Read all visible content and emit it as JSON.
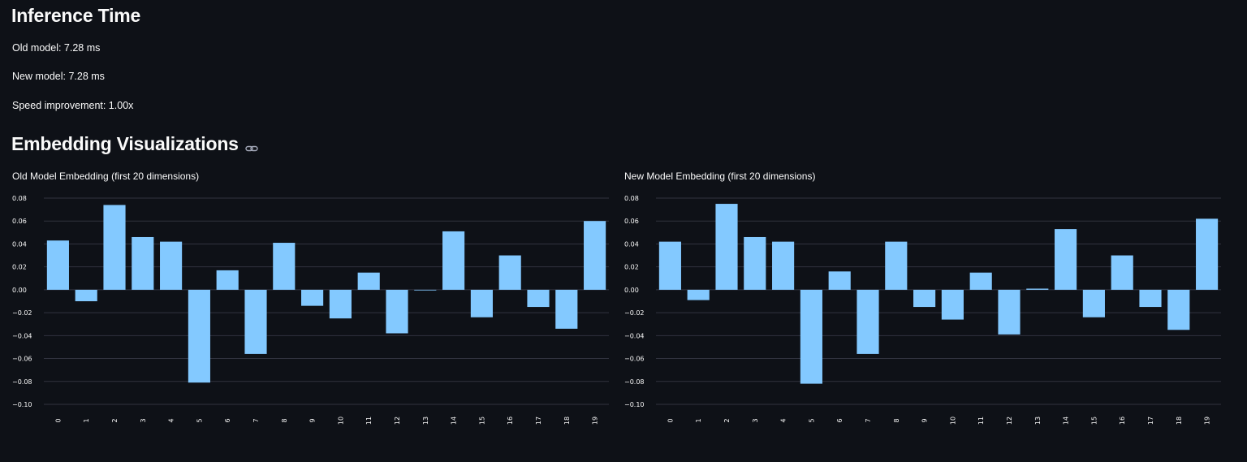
{
  "inference": {
    "heading": "Inference Time",
    "old_model": "Old model: 7.28 ms",
    "new_model": "New model: 7.28 ms",
    "speed": "Speed improvement: 1.00x"
  },
  "embedding": {
    "heading": "Embedding Visualizations",
    "link_icon": "link-icon"
  },
  "colors": {
    "background": "#0e1117",
    "bar": "#83c9ff",
    "grid": "#31333f",
    "text": "#fafafa"
  },
  "chart_data": [
    {
      "type": "bar",
      "title": "Old Model Embedding (first 20 dimensions)",
      "categories": [
        "0",
        "1",
        "2",
        "3",
        "4",
        "5",
        "6",
        "7",
        "8",
        "9",
        "10",
        "11",
        "12",
        "13",
        "14",
        "15",
        "16",
        "17",
        "18",
        "19"
      ],
      "values": [
        0.043,
        -0.01,
        0.074,
        0.046,
        0.042,
        -0.081,
        0.017,
        -0.056,
        0.041,
        -0.014,
        -0.025,
        0.015,
        -0.038,
        0.0,
        0.051,
        -0.024,
        0.03,
        -0.015,
        -0.034,
        0.06
      ],
      "yticks": [
        0.08,
        0.06,
        0.04,
        0.02,
        0.0,
        -0.02,
        -0.04,
        -0.06,
        -0.08,
        -0.1
      ],
      "ytick_labels": [
        "0.08",
        "0.06",
        "0.04",
        "0.02",
        "0.00",
        "−0.02",
        "−0.04",
        "−0.06",
        "−0.08",
        "−0.10"
      ],
      "ylim": [
        -0.1,
        0.08
      ],
      "xlabel": "",
      "ylabel": "",
      "grid": true
    },
    {
      "type": "bar",
      "title": "New Model Embedding (first 20 dimensions)",
      "categories": [
        "0",
        "1",
        "2",
        "3",
        "4",
        "5",
        "6",
        "7",
        "8",
        "9",
        "10",
        "11",
        "12",
        "13",
        "14",
        "15",
        "16",
        "17",
        "18",
        "19"
      ],
      "values": [
        0.042,
        -0.009,
        0.075,
        0.046,
        0.042,
        -0.082,
        0.016,
        -0.056,
        0.042,
        -0.015,
        -0.026,
        0.015,
        -0.039,
        0.001,
        0.053,
        -0.024,
        0.03,
        -0.015,
        -0.035,
        0.062
      ],
      "yticks": [
        0.08,
        0.06,
        0.04,
        0.02,
        0.0,
        -0.02,
        -0.04,
        -0.06,
        -0.08,
        -0.1
      ],
      "ytick_labels": [
        "0.08",
        "0.06",
        "0.04",
        "0.02",
        "0.00",
        "−0.02",
        "−0.04",
        "−0.06",
        "−0.08",
        "−0.10"
      ],
      "ylim": [
        -0.1,
        0.08
      ],
      "xlabel": "",
      "ylabel": "",
      "grid": true
    }
  ]
}
